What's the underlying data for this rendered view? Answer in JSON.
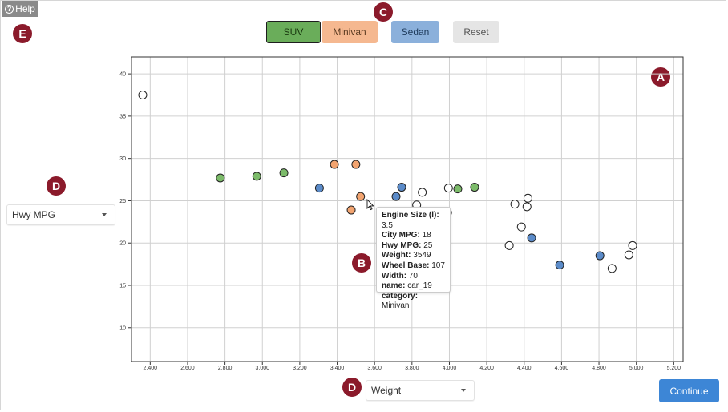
{
  "help": {
    "label": "Help"
  },
  "badges": {
    "a": "A",
    "b": "B",
    "c": "C",
    "d_y": "D",
    "d_x": "D",
    "e": "E"
  },
  "category_buttons": [
    {
      "label": "SUV",
      "color": "#6aad5a",
      "selected": true
    },
    {
      "label": "Minivan",
      "color": "#f5b890"
    },
    {
      "label": "Sedan",
      "color": "#8bb0db"
    },
    {
      "label": "Reset",
      "color": "#e5e5e5"
    }
  ],
  "y_select": {
    "value": "Hwy MPG"
  },
  "x_select": {
    "value": "Weight"
  },
  "continue_button": {
    "label": "Continue"
  },
  "tooltip": {
    "rows": [
      {
        "key": "Engine Size (l)",
        "value": "3.5"
      },
      {
        "key": "City MPG",
        "value": "18"
      },
      {
        "key": "Hwy MPG",
        "value": "25"
      },
      {
        "key": "Weight",
        "value": "3549"
      },
      {
        "key": "Wheel Base",
        "value": "107"
      },
      {
        "key": "Width",
        "value": "70"
      },
      {
        "key": "name",
        "value": "car_19"
      },
      {
        "key": "category",
        "value": "Minivan"
      }
    ]
  },
  "chart_data": {
    "type": "scatter",
    "xlim": [
      2300,
      5250
    ],
    "ylim": [
      6,
      42
    ],
    "x_ticks": [
      2400,
      2600,
      2800,
      3000,
      3200,
      3400,
      3600,
      3800,
      4000,
      4200,
      4400,
      4600,
      4800,
      5000,
      5200
    ],
    "x_tick_labels": [
      "2,400",
      "2,600",
      "2,800",
      "3,000",
      "3,200",
      "3,400",
      "3,600",
      "3,800",
      "4,000",
      "4,200",
      "4,400",
      "4,600",
      "4,800",
      "5,000",
      "5,200"
    ],
    "y_ticks": [
      10,
      15,
      20,
      25,
      30,
      35,
      40
    ],
    "y_tick_labels": [
      "10",
      "15",
      "20",
      "25",
      "30",
      "35",
      "40"
    ],
    "grid": true,
    "colors": {
      "suv": "#7cbb6a",
      "minivan": "#f2a470",
      "sedan": "#5b8bc9",
      "unlabeled": "#ffffff"
    },
    "points": [
      {
        "x": 2360,
        "y": 37.5,
        "category": "unlabeled"
      },
      {
        "x": 2775,
        "y": 27.7,
        "category": "suv"
      },
      {
        "x": 2970,
        "y": 27.9,
        "category": "suv"
      },
      {
        "x": 3115,
        "y": 28.3,
        "category": "suv"
      },
      {
        "x": 3305,
        "y": 26.5,
        "category": "sedan"
      },
      {
        "x": 3385,
        "y": 29.3,
        "category": "minivan"
      },
      {
        "x": 3500,
        "y": 29.3,
        "category": "minivan"
      },
      {
        "x": 3475,
        "y": 23.9,
        "category": "minivan"
      },
      {
        "x": 3525,
        "y": 25.5,
        "category": "minivan"
      },
      {
        "x": 3715,
        "y": 25.5,
        "category": "sedan"
      },
      {
        "x": 3745,
        "y": 26.6,
        "category": "sedan"
      },
      {
        "x": 3825,
        "y": 24.5,
        "category": "unlabeled"
      },
      {
        "x": 3855,
        "y": 26.0,
        "category": "unlabeled"
      },
      {
        "x": 3995,
        "y": 26.5,
        "category": "unlabeled"
      },
      {
        "x": 3990,
        "y": 23.6,
        "category": "suv"
      },
      {
        "x": 4045,
        "y": 26.4,
        "category": "suv"
      },
      {
        "x": 4135,
        "y": 26.6,
        "category": "suv"
      },
      {
        "x": 4320,
        "y": 19.7,
        "category": "unlabeled"
      },
      {
        "x": 4350,
        "y": 24.6,
        "category": "unlabeled"
      },
      {
        "x": 4385,
        "y": 21.9,
        "category": "unlabeled"
      },
      {
        "x": 4415,
        "y": 24.3,
        "category": "unlabeled"
      },
      {
        "x": 4420,
        "y": 25.3,
        "category": "unlabeled"
      },
      {
        "x": 4440,
        "y": 20.6,
        "category": "sedan"
      },
      {
        "x": 4590,
        "y": 17.4,
        "category": "sedan"
      },
      {
        "x": 4805,
        "y": 18.5,
        "category": "sedan"
      },
      {
        "x": 4870,
        "y": 17.0,
        "category": "unlabeled"
      },
      {
        "x": 4960,
        "y": 18.6,
        "category": "unlabeled"
      },
      {
        "x": 4980,
        "y": 19.7,
        "category": "unlabeled"
      }
    ]
  }
}
